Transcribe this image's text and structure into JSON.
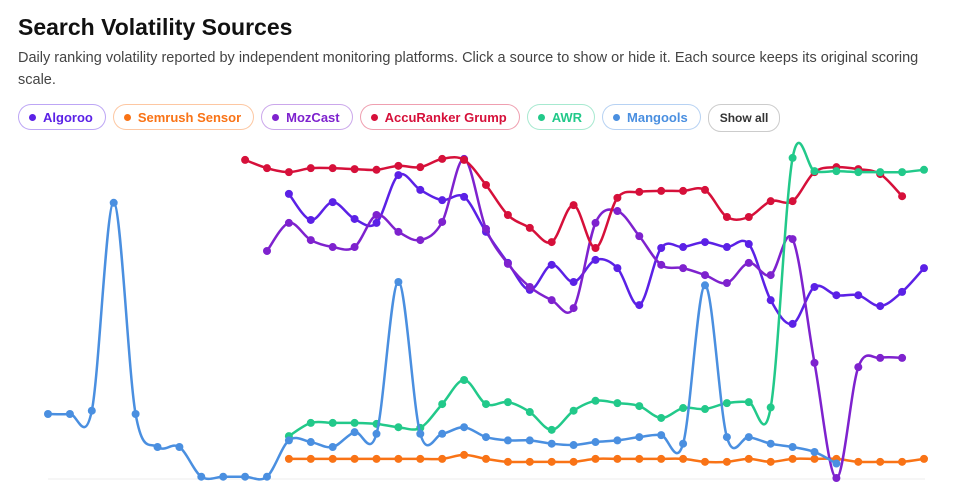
{
  "header": {
    "title": "Search Volatility Sources",
    "subtitle": "Daily ranking volatility reported by independent monitoring platforms. Click a source to show or hide it. Each source keeps its original scoring scale."
  },
  "show_all": "Show all",
  "chart_data": {
    "type": "line",
    "ylim": [
      0,
      100
    ],
    "categories": [
      null,
      null,
      null,
      null,
      null,
      null,
      null,
      null,
      null,
      null,
      null,
      null,
      null,
      null,
      null,
      null,
      null,
      null,
      null,
      null,
      null,
      null,
      null,
      null,
      null,
      null,
      null,
      null,
      null,
      null,
      null,
      null,
      null,
      null,
      null,
      null,
      null,
      null,
      null,
      null,
      null
    ],
    "series": [
      {
        "name": "Algoroo",
        "color": "#5b21e6",
        "values": [
          null,
          null,
          null,
          null,
          null,
          null,
          null,
          null,
          null,
          null,
          null,
          86.7,
          78.8,
          84.2,
          79.1,
          77.9,
          92.4,
          87.9,
          84.8,
          85.8,
          75.2,
          65.8,
          57.6,
          65.2,
          60,
          66.7,
          64.2,
          53,
          70.3,
          70.6,
          72.1,
          70.6,
          71.5,
          54.5,
          47.3,
          58.5,
          56,
          56,
          52.7,
          57,
          64.2
        ]
      },
      {
        "name": "Semrush Sensor",
        "color": "#f97316",
        "values": [
          null,
          null,
          null,
          null,
          null,
          null,
          null,
          null,
          null,
          null,
          null,
          6.4,
          6.4,
          6.4,
          6.4,
          6.4,
          6.4,
          6.4,
          6.4,
          7.6,
          6.4,
          5.5,
          5.5,
          5.5,
          5.5,
          6.4,
          6.4,
          6.4,
          6.4,
          6.4,
          5.5,
          5.5,
          6.4,
          5.5,
          6.4,
          6.4,
          6.4,
          5.5,
          5.5,
          5.5,
          6.4
        ]
      },
      {
        "name": "MozCast",
        "color": "#7e22ce",
        "values": [
          null,
          null,
          null,
          null,
          null,
          null,
          null,
          null,
          null,
          null,
          69.4,
          77.9,
          72.7,
          70.6,
          70.6,
          80.3,
          75.2,
          72.7,
          78.2,
          97.3,
          76.1,
          65.5,
          58.5,
          54.5,
          52.1,
          77.9,
          81.5,
          73.9,
          65.2,
          64.2,
          62.1,
          59.7,
          65.8,
          62.1,
          73,
          35.5,
          0.6,
          34.2,
          37,
          37,
          null
        ]
      },
      {
        "name": "AccuRanker Grump",
        "color": "#d6103a",
        "values": [
          null,
          null,
          null,
          null,
          null,
          null,
          null,
          null,
          null,
          97,
          94.5,
          93.3,
          94.5,
          94.5,
          94.2,
          94,
          95.2,
          94.8,
          97.3,
          97,
          89.4,
          80.3,
          76.4,
          72.1,
          83.3,
          70.3,
          85.5,
          87.3,
          87.6,
          87.6,
          87.9,
          79.7,
          79.7,
          84.5,
          84.5,
          93.3,
          94.8,
          94.2,
          92.7,
          86,
          null
        ]
      },
      {
        "name": "AWR",
        "color": "#22c98a",
        "values": [
          null,
          null,
          null,
          null,
          null,
          null,
          null,
          null,
          null,
          null,
          null,
          13.3,
          17.3,
          17.3,
          17.3,
          17,
          16,
          15.8,
          23,
          30.3,
          23,
          23.6,
          20.6,
          15.2,
          21,
          24,
          23.3,
          22.4,
          18.8,
          21.8,
          21.5,
          23.3,
          23.6,
          22,
          97.6,
          93.6,
          93.6,
          93.3,
          93.3,
          93.3,
          94
        ]
      },
      {
        "name": "Mangools",
        "color": "#4a8fe0",
        "values": [
          20,
          20,
          21,
          84,
          20,
          10,
          10,
          1,
          1,
          1,
          1,
          12,
          11.5,
          10,
          14.5,
          14,
          60,
          14,
          14,
          16,
          13,
          12,
          12,
          11,
          10.6,
          11.5,
          12,
          13,
          13.6,
          11,
          59,
          13,
          13,
          11,
          10,
          8.5,
          5,
          null,
          null,
          null,
          null
        ]
      }
    ]
  }
}
